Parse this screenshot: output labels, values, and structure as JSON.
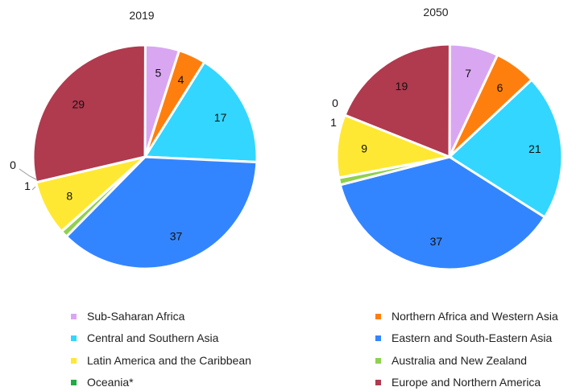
{
  "chart_data": {
    "type": "pie",
    "charts": [
      {
        "title": "2019",
        "values": [
          5,
          4,
          17,
          37,
          1,
          0,
          8,
          29
        ]
      },
      {
        "title": "2050",
        "values": [
          7,
          6,
          21,
          37,
          1,
          0,
          9,
          19
        ]
      }
    ],
    "categories": [
      "Sub-Saharan Africa",
      "Northern Africa and Western Asia",
      "Central and Southern Asia",
      "Eastern and South-Eastern Asia",
      "Australia and New Zealand",
      "Oceania*",
      "Latin America and the Caribbean",
      "Europe and Northern America"
    ],
    "colors": [
      "#d9a7f2",
      "#ff7f0e",
      "#33d6ff",
      "#3385ff",
      "#8fd14f",
      "#22aa44",
      "#ffe833",
      "#b03a4e"
    ],
    "legend_order": [
      0,
      1,
      2,
      3,
      6,
      4,
      5,
      7
    ],
    "legend_placement": "bottom",
    "slice_order": "clockwise from 12 o'clock"
  }
}
